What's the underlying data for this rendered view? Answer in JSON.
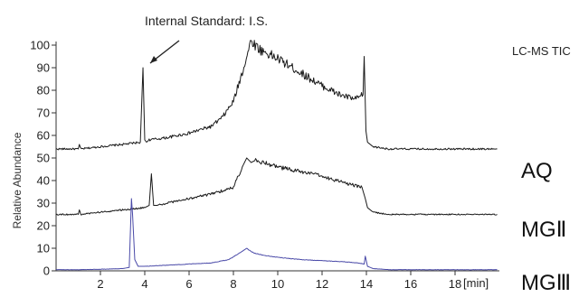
{
  "chart_data": {
    "type": "line",
    "title": "LC-MS TIC",
    "ylabel": "Relative Abundance",
    "xunit": "[min]",
    "annotation": "Internal Standard: I.S.",
    "xlim": [
      0,
      20
    ],
    "ylim": [
      0,
      100
    ],
    "x_ticks": [
      2,
      4,
      6,
      8,
      10,
      12,
      14,
      16,
      18
    ],
    "y_ticks": [
      0,
      10,
      20,
      30,
      40,
      50,
      60,
      70,
      80,
      90,
      100
    ],
    "colors": {
      "upper": "#1a1a1a",
      "lower": "#4a4aa8"
    },
    "series": [
      {
        "name": "AQ",
        "x": [
          0,
          1.0,
          1.05,
          1.12,
          2,
          3,
          3.8,
          3.92,
          4.0,
          4.08,
          4.2,
          5,
          6,
          7,
          7.5,
          8,
          8.4,
          8.8,
          9.2,
          10,
          11,
          12,
          12.8,
          13.5,
          13.85,
          13.9,
          13.98,
          14.05,
          14.3,
          15,
          17,
          19.9
        ],
        "y": [
          54,
          54,
          56,
          54,
          55,
          56,
          57,
          90,
          58,
          57,
          58,
          59,
          61,
          64,
          68,
          75,
          88,
          102,
          98,
          94,
          88,
          82,
          78,
          76,
          78,
          95,
          62,
          57,
          55,
          54,
          54,
          54
        ]
      },
      {
        "name": "MGⅡ",
        "x": [
          0,
          1.0,
          1.05,
          1.12,
          2,
          3,
          4.0,
          4.2,
          4.3,
          4.4,
          4.6,
          5,
          6,
          7,
          8,
          8.4,
          8.6,
          8.8,
          9.0,
          10,
          11,
          12,
          13,
          13.8,
          13.95,
          14.05,
          14.3,
          15,
          17,
          19.9
        ],
        "y": [
          25,
          25,
          27,
          25,
          26,
          27,
          28,
          29,
          43,
          29,
          29,
          30,
          32,
          34,
          37,
          46,
          50,
          48,
          49,
          46,
          44,
          42,
          39,
          37,
          32,
          28,
          26,
          25,
          25,
          25
        ]
      },
      {
        "name": "MGⅢ",
        "x": [
          0,
          1,
          2,
          3,
          3.3,
          3.4,
          3.45,
          3.55,
          3.7,
          4,
          5,
          6,
          7,
          7.8,
          8.3,
          8.6,
          8.9,
          9.3,
          10,
          11,
          12,
          13,
          13.6,
          13.9,
          13.95,
          14.05,
          14.3,
          15,
          17,
          19.9
        ],
        "y": [
          0.5,
          0.5,
          0.7,
          1.0,
          1.5,
          32,
          25,
          5,
          2.0,
          2.0,
          2.5,
          3.0,
          3.5,
          5,
          8,
          10,
          8,
          7,
          6,
          5,
          4.5,
          4,
          3.5,
          3,
          6.5,
          2,
          1,
          0.5,
          0.5,
          0.5
        ]
      }
    ]
  }
}
